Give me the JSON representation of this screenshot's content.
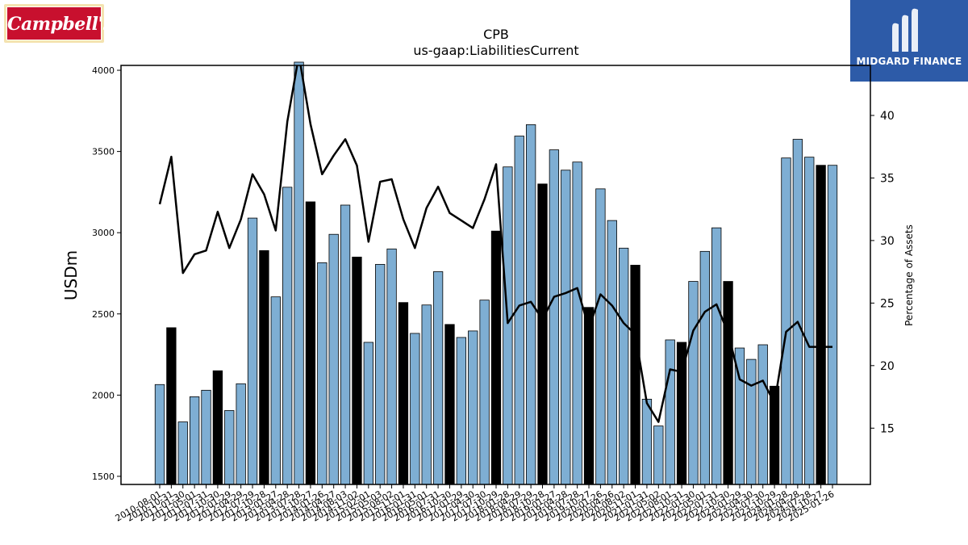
{
  "logos": {
    "left_text": "Campbell's",
    "right_text": "MIDGARD FINANCE"
  },
  "chart_data": {
    "type": "bar",
    "title": "CPB",
    "subtitle": "us-gaap:LiabilitiesCurrent",
    "ylabel": "USDm",
    "y2label": "Percentage of Assets",
    "ylim": [
      1450,
      4030
    ],
    "y2lim": [
      10.5,
      44.0
    ],
    "yticks": [
      1500,
      2000,
      2500,
      3000,
      3500,
      4000
    ],
    "y2ticks": [
      15,
      20,
      25,
      30,
      35,
      40
    ],
    "grid": false,
    "colors": {
      "bar_light": "#7eaed3",
      "bar_dark": "#000000",
      "line": "#000000"
    },
    "categories": [
      "2010-08-01",
      "2010-10-31",
      "2011-01-30",
      "2011-05-01",
      "2011-07-31",
      "2011-10-30",
      "2012-01-29",
      "2012-04-29",
      "2012-07-29",
      "2012-10-28",
      "2013-01-27",
      "2013-04-28",
      "2013-07-28",
      "2013-10-27",
      "2014-01-26",
      "2014-04-27",
      "2014-08-03",
      "2014-11-02",
      "2015-02-01",
      "2015-05-03",
      "2015-08-02",
      "2015-11-01",
      "2016-01-31",
      "2016-05-01",
      "2016-07-31",
      "2016-10-30",
      "2017-01-29",
      "2017-04-30",
      "2017-07-30",
      "2017-10-29",
      "2018-01-28",
      "2018-04-29",
      "2018-07-29",
      "2018-10-28",
      "2019-01-27",
      "2019-04-28",
      "2019-07-28",
      "2019-10-27",
      "2020-01-26",
      "2020-04-26",
      "2020-08-02",
      "2020-11-01",
      "2021-01-31",
      "2021-05-02",
      "2021-08-01",
      "2021-10-31",
      "2022-01-30",
      "2022-05-01",
      "2022-07-31",
      "2022-10-30",
      "2023-01-29",
      "2023-04-30",
      "2023-07-30",
      "2023-10-29",
      "2024-01-28",
      "2024-04-28",
      "2024-07-28",
      "2024-10-27",
      "2025-01-26"
    ],
    "highlight": [
      false,
      true,
      false,
      false,
      false,
      true,
      false,
      false,
      false,
      true,
      false,
      false,
      false,
      true,
      false,
      false,
      false,
      true,
      false,
      false,
      false,
      true,
      false,
      false,
      false,
      true,
      false,
      false,
      false,
      true,
      false,
      false,
      false,
      true,
      false,
      false,
      false,
      true,
      false,
      false,
      false,
      true,
      false,
      false,
      false,
      true,
      false,
      false,
      false,
      true,
      false,
      false,
      false,
      true,
      false,
      false,
      false,
      true,
      false
    ],
    "series": [
      {
        "type": "bar",
        "axis": "left",
        "values": [
          2065,
          2415,
          1835,
          1990,
          2030,
          2150,
          1905,
          2070,
          3090,
          2890,
          2605,
          3280,
          4050,
          3190,
          2815,
          2990,
          3170,
          2850,
          2325,
          2805,
          2900,
          2570,
          2380,
          2555,
          2760,
          2435,
          2355,
          2395,
          2585,
          3010,
          3405,
          3595,
          3665,
          3300,
          3510,
          3385,
          3435,
          2540,
          3270,
          3075,
          2905,
          2800,
          1975,
          1810,
          2340,
          2325,
          2700,
          2885,
          3030,
          2700,
          2290,
          2220,
          2310,
          2055,
          3460,
          3575,
          3465,
          3415,
          3415
        ]
      },
      {
        "type": "line",
        "axis": "right",
        "values": [
          32.9,
          36.7,
          27.4,
          28.9,
          29.2,
          32.3,
          29.4,
          31.7,
          35.3,
          33.7,
          30.8,
          39.5,
          44.8,
          39.3,
          35.3,
          36.8,
          38.1,
          36.0,
          29.9,
          34.7,
          34.9,
          31.7,
          29.4,
          32.6,
          34.3,
          32.2,
          31.6,
          31.0,
          33.3,
          36.1,
          23.4,
          24.8,
          25.1,
          23.7,
          25.5,
          25.8,
          26.2,
          23.0,
          25.7,
          24.8,
          23.4,
          22.5,
          17.0,
          15.5,
          19.7,
          19.5,
          22.8,
          24.3,
          24.9,
          22.6,
          18.9,
          18.4,
          18.8,
          17.0,
          22.7,
          23.5,
          21.5,
          21.5,
          21.5
        ]
      }
    ]
  }
}
